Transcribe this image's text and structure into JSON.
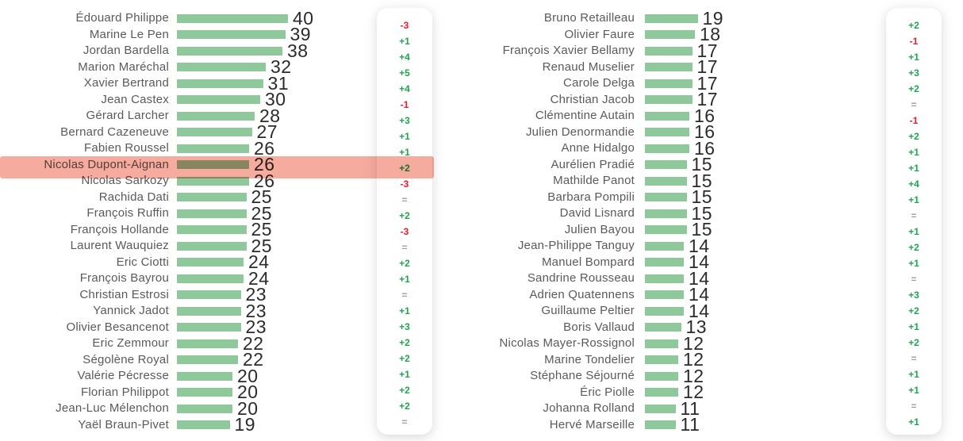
{
  "chart_data": {
    "type": "bar",
    "orientation": "horizontal",
    "bar_color": "#8ec89b",
    "name_color": "#5a5a5a",
    "value_color": "#2b2b2b",
    "change_colors": {
      "up": "#21a452",
      "down": "#e81c2c",
      "same": "#9da0a3"
    },
    "highlight": {
      "name": "Nicolas Dupont-Aignan",
      "color": "#f5ab9d"
    },
    "panels": [
      {
        "rows": [
          {
            "name": "Édouard Philippe",
            "value": 40,
            "change": "-3"
          },
          {
            "name": "Marine Le Pen",
            "value": 39,
            "change": "+1"
          },
          {
            "name": "Jordan Bardella",
            "value": 38,
            "change": "+4"
          },
          {
            "name": "Marion Maréchal",
            "value": 32,
            "change": "+5"
          },
          {
            "name": "Xavier Bertrand",
            "value": 31,
            "change": "+4"
          },
          {
            "name": "Jean Castex",
            "value": 30,
            "change": "-1"
          },
          {
            "name": "Gérard Larcher",
            "value": 28,
            "change": "+3"
          },
          {
            "name": "Bernard Cazeneuve",
            "value": 27,
            "change": "+1"
          },
          {
            "name": "Fabien Roussel",
            "value": 26,
            "change": "+1"
          },
          {
            "name": "Nicolas Dupont-Aignan",
            "value": 26,
            "change": "+2",
            "highlighted": true
          },
          {
            "name": "Nicolas Sarkozy",
            "value": 26,
            "change": "-3"
          },
          {
            "name": "Rachida Dati",
            "value": 25,
            "change": "="
          },
          {
            "name": "François Ruffin",
            "value": 25,
            "change": "+2"
          },
          {
            "name": "François Hollande",
            "value": 25,
            "change": "-3"
          },
          {
            "name": "Laurent Wauquiez",
            "value": 25,
            "change": "="
          },
          {
            "name": "Eric Ciotti",
            "value": 24,
            "change": "+2"
          },
          {
            "name": "François Bayrou",
            "value": 24,
            "change": "+1"
          },
          {
            "name": "Christian Estrosi",
            "value": 23,
            "change": "="
          },
          {
            "name": "Yannick Jadot",
            "value": 23,
            "change": "+1"
          },
          {
            "name": "Olivier Besancenot",
            "value": 23,
            "change": "+3"
          },
          {
            "name": "Eric Zemmour",
            "value": 22,
            "change": "+2"
          },
          {
            "name": "Ségolène Royal",
            "value": 22,
            "change": "+2"
          },
          {
            "name": "Valérie Pécresse",
            "value": 20,
            "change": "+1"
          },
          {
            "name": "Florian Philippot",
            "value": 20,
            "change": "+2"
          },
          {
            "name": "Jean-Luc Mélenchon",
            "value": 20,
            "change": "+2"
          },
          {
            "name": "Yaël Braun-Pivet",
            "value": 19,
            "change": "="
          }
        ]
      },
      {
        "rows": [
          {
            "name": "Bruno Retailleau",
            "value": 19,
            "change": "+2"
          },
          {
            "name": "Olivier Faure",
            "value": 18,
            "change": "-1"
          },
          {
            "name": "François Xavier Bellamy",
            "value": 17,
            "change": "+1"
          },
          {
            "name": "Renaud Muselier",
            "value": 17,
            "change": "+3"
          },
          {
            "name": "Carole Delga",
            "value": 17,
            "change": "+2"
          },
          {
            "name": "Christian Jacob",
            "value": 17,
            "change": "="
          },
          {
            "name": "Clémentine Autain",
            "value": 16,
            "change": "-1"
          },
          {
            "name": "Julien Denormandie",
            "value": 16,
            "change": "+2"
          },
          {
            "name": "Anne Hidalgo",
            "value": 16,
            "change": "+1"
          },
          {
            "name": "Aurélien Pradié",
            "value": 15,
            "change": "+1"
          },
          {
            "name": "Mathilde Panot",
            "value": 15,
            "change": "+4"
          },
          {
            "name": "Barbara Pompili",
            "value": 15,
            "change": "+1"
          },
          {
            "name": "David Lisnard",
            "value": 15,
            "change": "="
          },
          {
            "name": "Julien Bayou",
            "value": 15,
            "change": "+1"
          },
          {
            "name": "Jean-Philippe Tanguy",
            "value": 14,
            "change": "+2"
          },
          {
            "name": "Manuel Bompard",
            "value": 14,
            "change": "+1"
          },
          {
            "name": "Sandrine Rousseau",
            "value": 14,
            "change": "="
          },
          {
            "name": "Adrien Quatennens",
            "value": 14,
            "change": "+3"
          },
          {
            "name": "Guillaume Peltier",
            "value": 14,
            "change": "+2"
          },
          {
            "name": "Boris Vallaud",
            "value": 13,
            "change": "+1"
          },
          {
            "name": "Nicolas Mayer-Rossignol",
            "value": 12,
            "change": "+2"
          },
          {
            "name": "Marine Tondelier",
            "value": 12,
            "change": "="
          },
          {
            "name": "Stéphane Séjourné",
            "value": 12,
            "change": "+1"
          },
          {
            "name": "Éric Piolle",
            "value": 12,
            "change": "+1"
          },
          {
            "name": "Johanna Rolland",
            "value": 11,
            "change": "="
          },
          {
            "name": "Hervé Marseille",
            "value": 11,
            "change": "+1"
          }
        ]
      }
    ]
  }
}
